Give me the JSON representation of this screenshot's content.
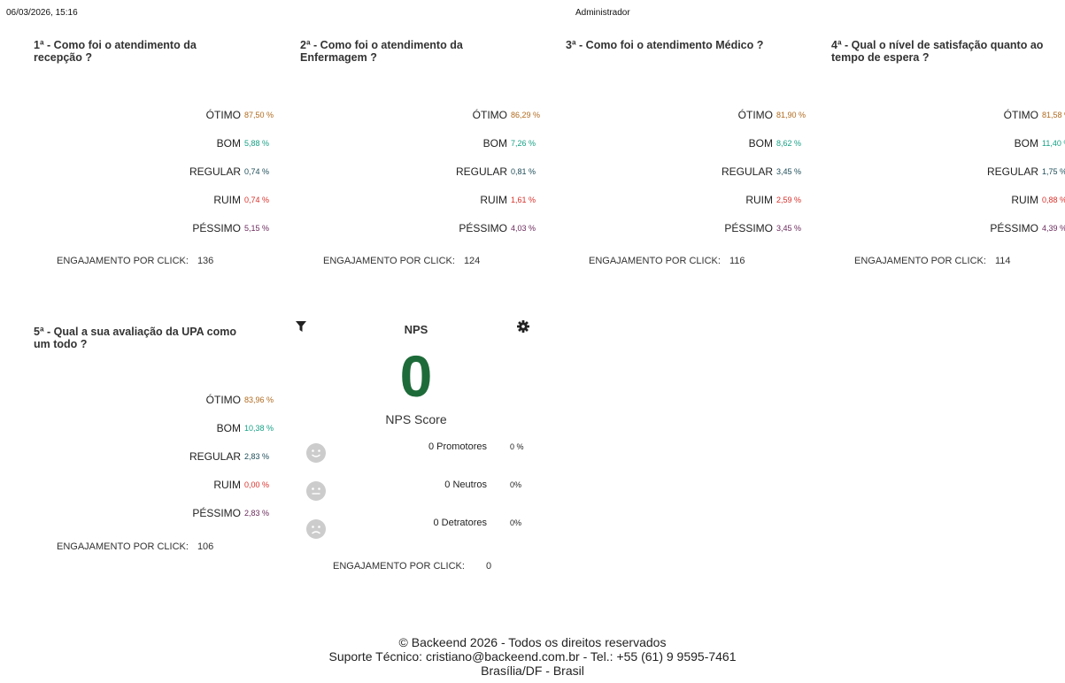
{
  "header": {
    "datetime": "06/03/2026, 15:16",
    "user": "Administrador"
  },
  "colors": {
    "otimo": "#b06a1e",
    "bom": "#16a085",
    "regular": "#1f4e5a",
    "ruim": "#d9302a",
    "pessimo": "#6b2a5c",
    "nps_score": "#1e6b3a",
    "face": "#cccccc"
  },
  "labels": {
    "otimo": "ÓTIMO",
    "bom": "BOM",
    "regular": "REGULAR",
    "ruim": "RUIM",
    "pessimo": "PÉSSIMO",
    "engagement": "ENGAJAMENTO POR CLICK:"
  },
  "questions": [
    {
      "title": "1ª - Como foi o atendimento da recepção ?",
      "otimo": "87,50 %",
      "bom": "5,88 %",
      "regular": "0,74 %",
      "ruim": "0,74 %",
      "pessimo": "5,15 %",
      "engagement": "136"
    },
    {
      "title": "2ª - Como foi o atendimento da Enfermagem ?",
      "otimo": "86,29 %",
      "bom": "7,26 %",
      "regular": "0,81 %",
      "ruim": "1,61 %",
      "pessimo": "4,03 %",
      "engagement": "124"
    },
    {
      "title": "3ª - Como foi o atendimento Médico ?",
      "otimo": "81,90 %",
      "bom": "8,62 %",
      "regular": "3,45 %",
      "ruim": "2,59 %",
      "pessimo": "3,45 %",
      "engagement": "116"
    },
    {
      "title": "4ª - Qual o nível de satisfação quanto ao tempo de espera ?",
      "otimo": "81,58 %",
      "bom": "11,40 %",
      "regular": "1,75 %",
      "ruim": "0,88 %",
      "pessimo": "4,39 %",
      "engagement": "114"
    },
    {
      "title": "5ª - Qual a sua avaliação da UPA como um todo ?",
      "otimo": "83,96 %",
      "bom": "10,38 %",
      "regular": "2,83 %",
      "ruim": "0,00 %",
      "pessimo": "2,83 %",
      "engagement": "106"
    }
  ],
  "nps": {
    "title": "NPS",
    "score": "0",
    "score_label": "NPS Score",
    "promoters": "0 Promotores",
    "promoters_pct": "0 %",
    "neutrals": "0 Neutros",
    "neutrals_pct": "0%",
    "detractors": "0 Detratores",
    "detractors_pct": "0%",
    "engagement_label": "ENGAJAMENTO POR CLICK:",
    "engagement": "0",
    "icons": {
      "filter": "filter-icon",
      "settings": "gear-icon",
      "promoters": "smile-face-icon",
      "neutrals": "neutral-face-icon",
      "detractors": "sad-face-icon"
    }
  },
  "footer": {
    "line1": "© Backeend 2026 - Todos os direitos reservados",
    "line2": "Suporte Técnico: cristiano@backeend.com.br - Tel.: +55 (61) 9 9595-7461",
    "line3": "Brasília/DF - Brasil"
  }
}
